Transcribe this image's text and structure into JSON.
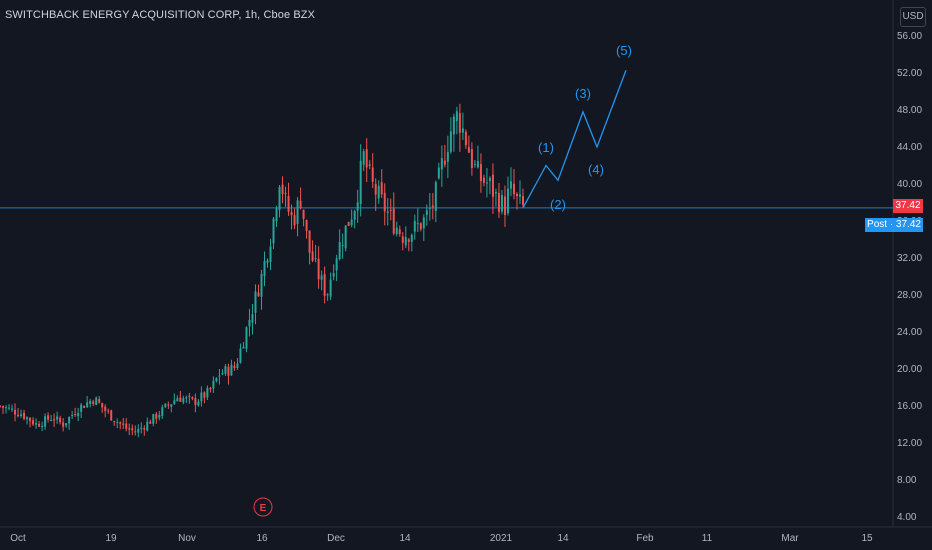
{
  "title": "SWITCHBACK ENERGY ACQUISITION CORP, 1h, Cboe BZX",
  "currency": "USD",
  "last_price_label": "37.42",
  "post_label": "Post · 37.42",
  "colors": {
    "background": "#131722",
    "up": "#26a69a",
    "down": "#ef5350",
    "wave": "#2196f3",
    "price_line": "#2196f3",
    "price_tag": "#f23645",
    "post_tag": "#2196f3",
    "event": "#f23645"
  },
  "event_marker": "E",
  "chart_data": {
    "type": "candlestick",
    "ylim": [
      4,
      56
    ],
    "y_ticks": [
      "56.00",
      "52.00",
      "48.00",
      "44.00",
      "40.00",
      "36.00",
      "32.00",
      "28.00",
      "24.00",
      "20.00",
      "16.00",
      "12.00",
      "8.00",
      "4.00"
    ],
    "x_ticks": [
      "Oct",
      "19",
      "Nov",
      "16",
      "Dec",
      "14",
      "2021",
      "14",
      "Feb",
      "11",
      "Mar",
      "15"
    ],
    "grid": false,
    "last_price": 37.42,
    "price_path": [
      [
        0,
        16.0
      ],
      [
        0.04,
        15.2
      ],
      [
        0.07,
        14.0
      ],
      [
        0.1,
        14.8
      ],
      [
        0.12,
        14.0
      ],
      [
        0.15,
        15.8
      ],
      [
        0.18,
        16.8
      ],
      [
        0.21,
        15.0
      ],
      [
        0.24,
        13.6
      ],
      [
        0.26,
        13.2
      ],
      [
        0.29,
        14.5
      ],
      [
        0.32,
        16.0
      ],
      [
        0.34,
        17.0
      ],
      [
        0.37,
        16.4
      ],
      [
        0.4,
        17.5
      ],
      [
        0.42,
        19.5
      ],
      [
        0.45,
        20.2
      ],
      [
        0.48,
        26.0
      ],
      [
        0.5,
        30.0
      ],
      [
        0.52,
        35.0
      ],
      [
        0.535,
        41.0
      ],
      [
        0.545,
        38.0
      ],
      [
        0.56,
        36.0
      ],
      [
        0.575,
        38.5
      ],
      [
        0.59,
        33.0
      ],
      [
        0.61,
        30.0
      ],
      [
        0.625,
        28.0
      ],
      [
        0.64,
        32.0
      ],
      [
        0.66,
        35.0
      ],
      [
        0.68,
        38.0
      ],
      [
        0.695,
        43.0
      ],
      [
        0.71,
        40.0
      ],
      [
        0.73,
        38.0
      ],
      [
        0.75,
        36.0
      ],
      [
        0.77,
        34.5
      ],
      [
        0.79,
        35.0
      ],
      [
        0.81,
        36.0
      ],
      [
        0.83,
        38.0
      ],
      [
        0.845,
        42.0
      ],
      [
        0.86,
        45.5
      ],
      [
        0.875,
        47.5
      ],
      [
        0.89,
        45.0
      ],
      [
        0.905,
        42.0
      ],
      [
        0.92,
        40.5
      ],
      [
        0.935,
        40.0
      ],
      [
        0.95,
        38.5
      ],
      [
        0.965,
        37.5
      ],
      [
        0.975,
        39.5
      ],
      [
        0.99,
        38.0
      ],
      [
        1.0,
        37.42
      ]
    ],
    "wave_projection": [
      {
        "label": "(1)",
        "value": 42.0
      },
      {
        "label": "(2)",
        "value": 40.4
      },
      {
        "label": "(3)",
        "value": 47.8
      },
      {
        "label": "(4)",
        "value": 44.0
      },
      {
        "label": "(5)",
        "value": 52.3
      }
    ]
  }
}
